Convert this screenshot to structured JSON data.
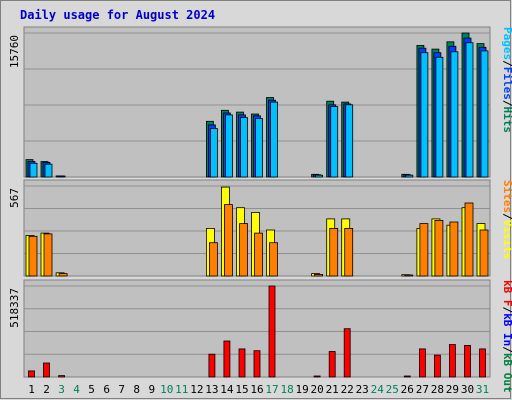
{
  "colors": {
    "background": "#d8d8d8",
    "panel": "#c0c0c0",
    "grid": "#909090",
    "title": "#0000cc",
    "hits": "#00805c",
    "files": "#0040ff",
    "pages": "#00c0ff",
    "visits": "#ffff00",
    "sites": "#ff8000",
    "kb_f": "#ff0000",
    "kb_in": "#0000ff",
    "kb_out": "#008040",
    "weekday": "#000000",
    "weekend": "#00805c"
  },
  "chart_data": {
    "type": "bar",
    "title": "Daily usage for August 2024",
    "x": [
      "1",
      "2",
      "3",
      "4",
      "5",
      "6",
      "7",
      "8",
      "9",
      "10",
      "11",
      "12",
      "13",
      "14",
      "15",
      "16",
      "17",
      "18",
      "19",
      "20",
      "21",
      "22",
      "23",
      "24",
      "25",
      "26",
      "27",
      "28",
      "29",
      "30",
      "31"
    ],
    "weekend_days": [
      "3",
      "4",
      "10",
      "11",
      "17",
      "18",
      "24",
      "25",
      "31"
    ],
    "panels": [
      {
        "name": "hits-files-pages",
        "max_label": "15760",
        "ylim": [
          0,
          15760
        ],
        "legend": [
          {
            "text": "Pages",
            "color": "#00c0ff"
          },
          {
            "text": "/",
            "color": "#000000"
          },
          {
            "text": "Files",
            "color": "#0040ff"
          },
          {
            "text": "/",
            "color": "#000000"
          },
          {
            "text": "Hits",
            "color": "#00805c"
          }
        ],
        "series": [
          {
            "name": "Hits",
            "color": "#00805c",
            "values": [
              1900,
              1700,
              120,
              0,
              0,
              0,
              0,
              0,
              0,
              0,
              0,
              0,
              6100,
              7300,
              7100,
              6900,
              8700,
              0,
              0,
              300,
              8300,
              8200,
              0,
              0,
              0,
              300,
              14400,
              14000,
              14800,
              15760,
              14600
            ]
          },
          {
            "name": "Files",
            "color": "#0040ff",
            "values": [
              1700,
              1600,
              80,
              0,
              0,
              0,
              0,
              0,
              0,
              0,
              0,
              0,
              5700,
              7000,
              6800,
              6700,
              8400,
              0,
              0,
              250,
              7900,
              8000,
              0,
              0,
              0,
              250,
              14100,
              13600,
              14300,
              15200,
              14200
            ]
          },
          {
            "name": "Pages",
            "color": "#00c0ff",
            "values": [
              1500,
              1400,
              0,
              0,
              0,
              0,
              0,
              0,
              0,
              0,
              0,
              0,
              5300,
              6800,
              6500,
              6400,
              8200,
              0,
              0,
              200,
              7700,
              7900,
              0,
              0,
              0,
              200,
              13600,
              13100,
              13700,
              14700,
              13800
            ]
          }
        ]
      },
      {
        "name": "visits-sites",
        "max_label": "567",
        "ylim": [
          0,
          567
        ],
        "legend": [
          {
            "text": "Sites",
            "color": "#ff8000"
          },
          {
            "text": "/",
            "color": "#000000"
          },
          {
            "text": "Visits",
            "color": "#ffff00"
          }
        ],
        "series": [
          {
            "name": "Visits",
            "color": "#ffff00",
            "values": [
              255,
              270,
              20,
              0,
              0,
              0,
              0,
              0,
              0,
              0,
              0,
              0,
              300,
              560,
              430,
              400,
              290,
              0,
              0,
              15,
              360,
              360,
              0,
              0,
              0,
              8,
              300,
              360,
              320,
              430,
              330
            ]
          },
          {
            "name": "Sites",
            "color": "#ff8000",
            "values": [
              250,
              265,
              15,
              0,
              0,
              0,
              0,
              0,
              0,
              0,
              0,
              0,
              210,
              450,
              330,
              270,
              210,
              0,
              0,
              10,
              300,
              300,
              0,
              0,
              0,
              5,
              330,
              350,
              340,
              460,
              290
            ]
          }
        ]
      },
      {
        "name": "kbytes",
        "max_label": "518337",
        "ylim": [
          0,
          518337
        ],
        "legend": [
          {
            "text": "kB F",
            "color": "#ff0000"
          },
          {
            "text": "/",
            "color": "#000000"
          },
          {
            "text": "kB In",
            "color": "#0000ff"
          },
          {
            "text": "/",
            "color": "#000000"
          },
          {
            "text": "kB Out",
            "color": "#008040"
          }
        ],
        "series": [
          {
            "name": "kB F",
            "color": "#ff0000",
            "values": [
              35000,
              80000,
              8000,
              0,
              0,
              0,
              0,
              0,
              0,
              0,
              0,
              0,
              130000,
              205000,
              160000,
              150000,
              518337,
              0,
              0,
              4000,
              145000,
              275000,
              0,
              0,
              0,
              4000,
              160000,
              125000,
              185000,
              180000,
              160000
            ]
          }
        ]
      }
    ]
  }
}
